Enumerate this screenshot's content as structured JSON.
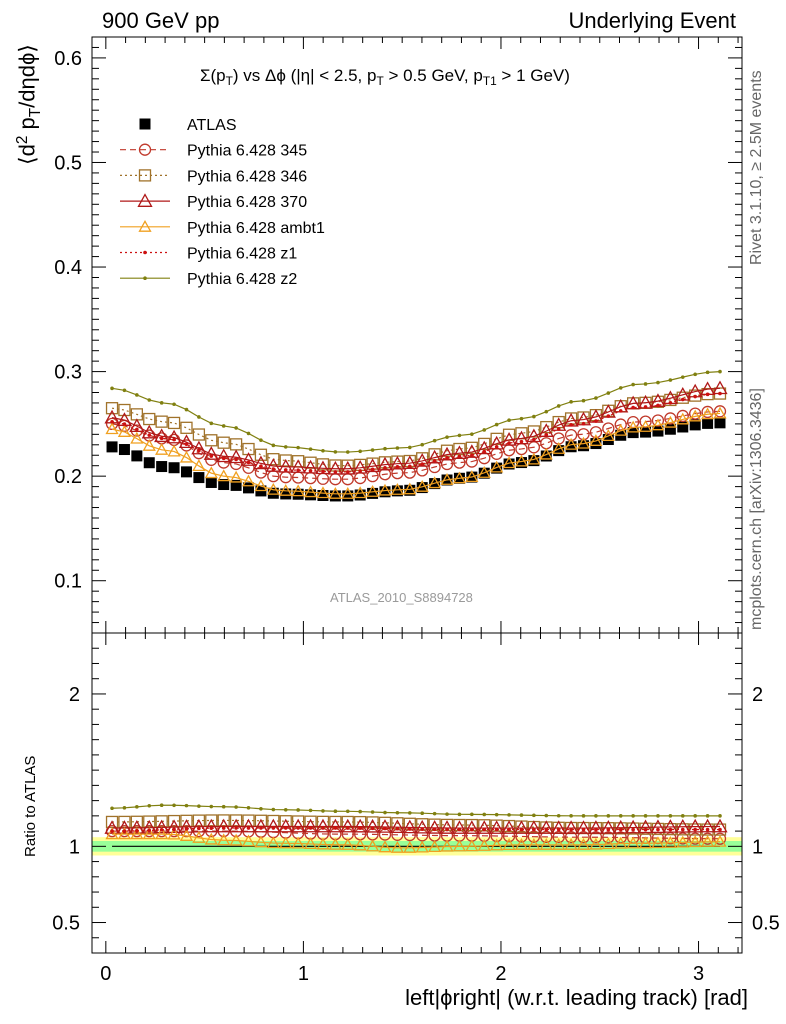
{
  "header": {
    "left": "900 GeV pp",
    "right": "Underlying Event"
  },
  "side": {
    "rivet": "Rivet 3.1.10, ≥ 2.5M events",
    "mcplots": "mcplots.cern.ch [arXiv:1306.3436]"
  },
  "title": {
    "sigma": "Σ(p",
    "sub_T": "T",
    "mid": ") vs Δϕ (|η| < 2.5, p",
    "sub_T2": "T",
    "mid2": " > 0.5 GeV, p",
    "sub_T1": "T1",
    "end": " > 1 GeV)"
  },
  "ylabel_main": {
    "pre": "⟨d",
    "sup": "2",
    "mid": " p",
    "sub": "T",
    "post": "/dηdϕ⟩"
  },
  "ylabel_ratio": "Ratio to ATLAS",
  "xlabel": "left|ϕright| (w.r.t. leading track) [rad]",
  "watermark": "ATLAS_2010_S8894728",
  "chart_data": {
    "type": "scatter",
    "x_range": [
      -0.07,
      3.22
    ],
    "main_ylim": [
      0.05,
      0.62
    ],
    "ratio_ylim": [
      0.3,
      2.4
    ],
    "x_ticks": [
      "0",
      "1",
      "2",
      "3"
    ],
    "main_y_ticks": [
      "0.1",
      "0.2",
      "0.3",
      "0.4",
      "0.5",
      "0.6"
    ],
    "ratio_y_ticks": [
      "0.5",
      "1",
      "2"
    ],
    "legend_position": "top-left",
    "n_points": 50,
    "x_step": 0.0628,
    "series": [
      {
        "name": "ATLAS",
        "color": "#000000",
        "marker": "square",
        "line": "none",
        "dash": "",
        "anchors": [
          [
            0.03,
            0.228
          ],
          [
            0.3,
            0.209
          ],
          [
            0.6,
            0.192
          ],
          [
            0.9,
            0.183
          ],
          [
            1.2,
            0.181
          ],
          [
            1.5,
            0.186
          ],
          [
            1.8,
            0.198
          ],
          [
            2.1,
            0.213
          ],
          [
            2.4,
            0.229
          ],
          [
            2.7,
            0.242
          ],
          [
            3.11,
            0.251
          ]
        ],
        "ratio_anchors": [
          [
            0.03,
            1.0
          ],
          [
            3.11,
            1.0
          ]
        ]
      },
      {
        "name": "Pythia 6.428 345",
        "color": "#c0392b",
        "marker": "circle",
        "line": "dashed",
        "dash": "6,4",
        "anchors": [
          [
            0.03,
            0.25
          ],
          [
            0.3,
            0.236
          ],
          [
            0.6,
            0.213
          ],
          [
            0.9,
            0.199
          ],
          [
            1.2,
            0.197
          ],
          [
            1.5,
            0.203
          ],
          [
            1.8,
            0.213
          ],
          [
            2.1,
            0.226
          ],
          [
            2.4,
            0.24
          ],
          [
            2.7,
            0.252
          ],
          [
            3.11,
            0.262
          ]
        ],
        "ratio_anchors": [
          [
            0.03,
            1.1
          ],
          [
            0.6,
            1.1
          ],
          [
            1.2,
            1.08
          ],
          [
            1.8,
            1.07
          ],
          [
            2.4,
            1.06
          ],
          [
            3.11,
            1.05
          ]
        ]
      },
      {
        "name": "Pythia 6.428 346",
        "color": "#a0722a",
        "marker": "opensquare",
        "line": "dotted",
        "dash": "2,3",
        "anchors": [
          [
            0.03,
            0.265
          ],
          [
            0.3,
            0.252
          ],
          [
            0.6,
            0.232
          ],
          [
            0.9,
            0.215
          ],
          [
            1.2,
            0.21
          ],
          [
            1.5,
            0.214
          ],
          [
            1.8,
            0.226
          ],
          [
            2.1,
            0.241
          ],
          [
            2.4,
            0.256
          ],
          [
            2.7,
            0.27
          ],
          [
            3.11,
            0.279
          ]
        ],
        "ratio_anchors": [
          [
            0.03,
            1.16
          ],
          [
            0.6,
            1.17
          ],
          [
            1.2,
            1.16
          ],
          [
            1.8,
            1.14
          ],
          [
            2.4,
            1.12
          ],
          [
            3.11,
            1.11
          ]
        ]
      },
      {
        "name": "Pythia 6.428 370",
        "color": "#b01818",
        "marker": "triangle",
        "line": "solid",
        "dash": "",
        "anchors": [
          [
            0.03,
            0.256
          ],
          [
            0.3,
            0.238
          ],
          [
            0.6,
            0.219
          ],
          [
            0.9,
            0.209
          ],
          [
            1.2,
            0.207
          ],
          [
            1.5,
            0.212
          ],
          [
            1.8,
            0.222
          ],
          [
            2.1,
            0.236
          ],
          [
            2.4,
            0.254
          ],
          [
            2.7,
            0.27
          ],
          [
            3.11,
            0.284
          ]
        ],
        "ratio_anchors": [
          [
            0.03,
            1.12
          ],
          [
            0.6,
            1.13
          ],
          [
            1.2,
            1.13
          ],
          [
            1.8,
            1.12
          ],
          [
            2.4,
            1.12
          ],
          [
            3.11,
            1.13
          ]
        ]
      },
      {
        "name": "Pythia 6.428 ambt1",
        "color": "#f0a020",
        "marker": "opentriangle",
        "line": "solid",
        "dash": "",
        "anchors": [
          [
            0.03,
            0.245
          ],
          [
            0.3,
            0.225
          ],
          [
            0.6,
            0.2
          ],
          [
            0.9,
            0.186
          ],
          [
            1.2,
            0.183
          ],
          [
            1.5,
            0.187
          ],
          [
            1.8,
            0.198
          ],
          [
            2.1,
            0.214
          ],
          [
            2.4,
            0.231
          ],
          [
            2.7,
            0.247
          ],
          [
            3.11,
            0.26
          ]
        ],
        "ratio_anchors": [
          [
            0.03,
            1.08
          ],
          [
            0.3,
            1.08
          ],
          [
            0.6,
            1.04
          ],
          [
            0.9,
            1.02
          ],
          [
            1.2,
            1.01
          ],
          [
            1.5,
            0.99
          ],
          [
            1.8,
            1.0
          ],
          [
            2.1,
            1.01
          ],
          [
            2.4,
            1.01
          ],
          [
            2.7,
            1.02
          ],
          [
            3.11,
            1.03
          ]
        ]
      },
      {
        "name": "Pythia 6.428 z1",
        "color": "#cc1111",
        "marker": "dot",
        "line": "dotted",
        "dash": "2,3",
        "anchors": [
          [
            0.03,
            0.252
          ],
          [
            0.3,
            0.236
          ],
          [
            0.6,
            0.217
          ],
          [
            0.9,
            0.206
          ],
          [
            1.2,
            0.204
          ],
          [
            1.5,
            0.209
          ],
          [
            1.8,
            0.219
          ],
          [
            2.1,
            0.233
          ],
          [
            2.4,
            0.25
          ],
          [
            2.7,
            0.266
          ],
          [
            3.11,
            0.279
          ]
        ],
        "ratio_anchors": [
          [
            0.03,
            1.1
          ],
          [
            0.6,
            1.12
          ],
          [
            1.2,
            1.12
          ],
          [
            1.8,
            1.11
          ],
          [
            2.4,
            1.11
          ],
          [
            3.11,
            1.11
          ]
        ]
      },
      {
        "name": "Pythia 6.428 z2",
        "color": "#808010",
        "marker": "dot",
        "line": "solid",
        "dash": "",
        "anchors": [
          [
            0.03,
            0.284
          ],
          [
            0.3,
            0.27
          ],
          [
            0.6,
            0.248
          ],
          [
            0.9,
            0.228
          ],
          [
            1.2,
            0.223
          ],
          [
            1.5,
            0.227
          ],
          [
            1.8,
            0.239
          ],
          [
            2.1,
            0.255
          ],
          [
            2.4,
            0.272
          ],
          [
            2.7,
            0.288
          ],
          [
            3.11,
            0.3
          ]
        ],
        "ratio_anchors": [
          [
            0.03,
            1.25
          ],
          [
            0.3,
            1.27
          ],
          [
            0.6,
            1.26
          ],
          [
            0.9,
            1.24
          ],
          [
            1.2,
            1.23
          ],
          [
            1.5,
            1.22
          ],
          [
            1.8,
            1.21
          ],
          [
            2.4,
            1.2
          ],
          [
            3.11,
            1.2
          ]
        ]
      }
    ]
  }
}
